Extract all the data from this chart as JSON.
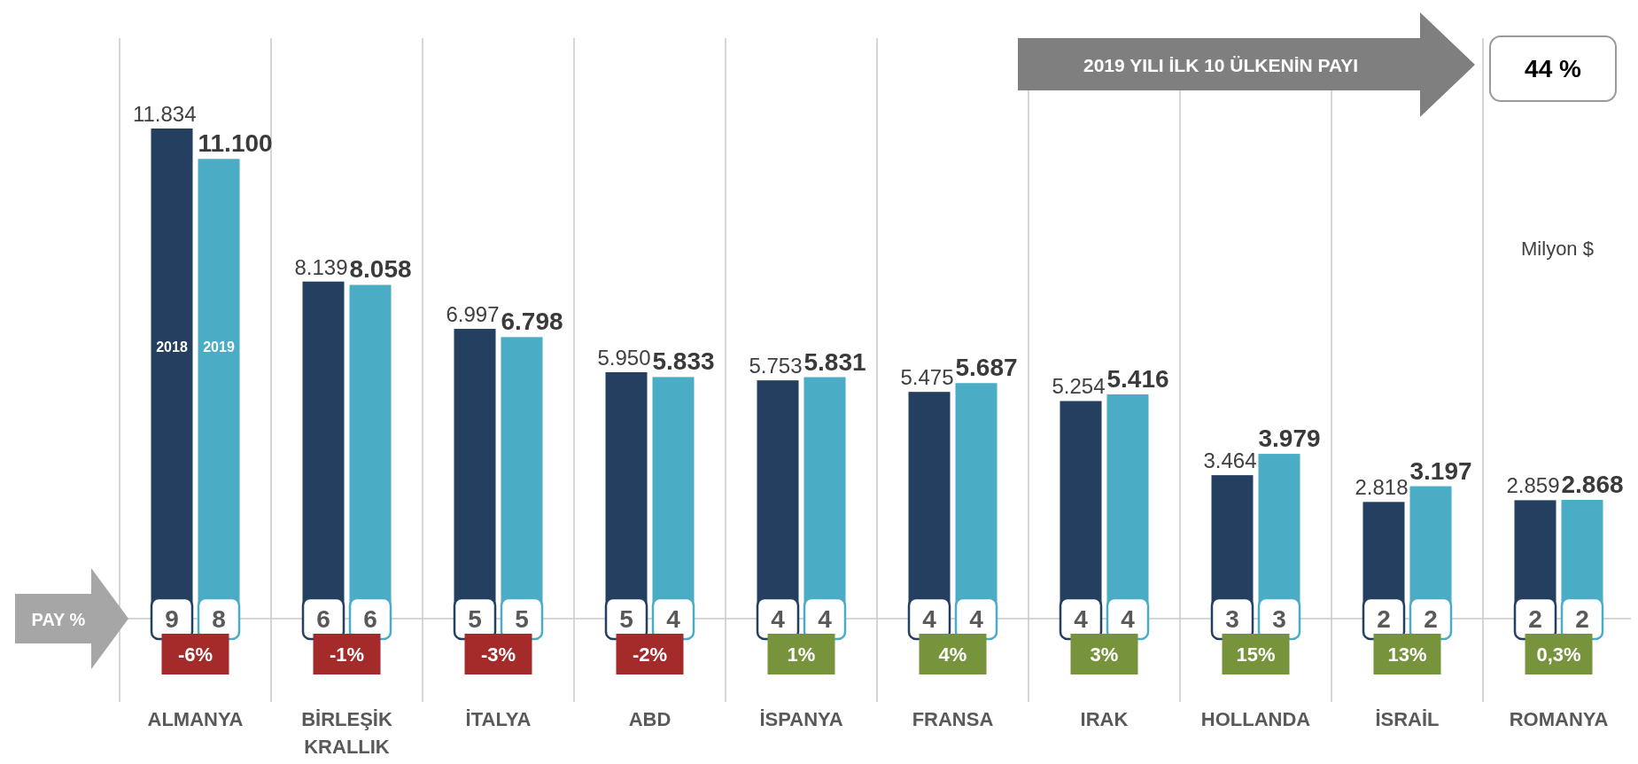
{
  "chart_data": {
    "type": "bar",
    "categories": [
      "ALMANYA",
      "BİRLEŞİK KRALLIK",
      "İTALYA",
      "ABD",
      "İSPANYA",
      "FRANSA",
      "IRAK",
      "HOLLANDA",
      "İSRAİL",
      "ROMANYA"
    ],
    "series": [
      {
        "name": "2018",
        "color": "#243f60",
        "values": [
          11834,
          8139,
          6997,
          5950,
          5753,
          5475,
          5254,
          3464,
          2818,
          2859
        ],
        "value_labels": [
          "11.834",
          "8.139",
          "6.997",
          "5.950",
          "5.753",
          "5.475",
          "5.254",
          "3.464",
          "2.818",
          "2.859"
        ]
      },
      {
        "name": "2019",
        "color": "#4bacc6",
        "values": [
          11100,
          8058,
          6798,
          5833,
          5831,
          5687,
          5416,
          3979,
          3197,
          2868
        ],
        "value_labels": [
          "11.100",
          "8.058",
          "6.798",
          "5.833",
          "5.831",
          "5.687",
          "5.416",
          "3.979",
          "3.197",
          "2.868"
        ]
      }
    ],
    "grid": "x",
    "annotations": [
      "2019 YILI İLK 10 ÜLKENİN PAYI",
      "44 %",
      "Milyon $",
      "PAY %",
      "9",
      "8",
      "-6%",
      "6",
      "6",
      "-1%",
      "5",
      "5",
      "-3%",
      "5",
      "4",
      "-2%",
      "4",
      "4",
      "1%",
      "4",
      "4",
      "4%",
      "4",
      "4",
      "3%",
      "3",
      "3",
      "15%",
      "2",
      "2",
      "13%",
      "2",
      "2",
      "0,3%"
    ]
  }
}
